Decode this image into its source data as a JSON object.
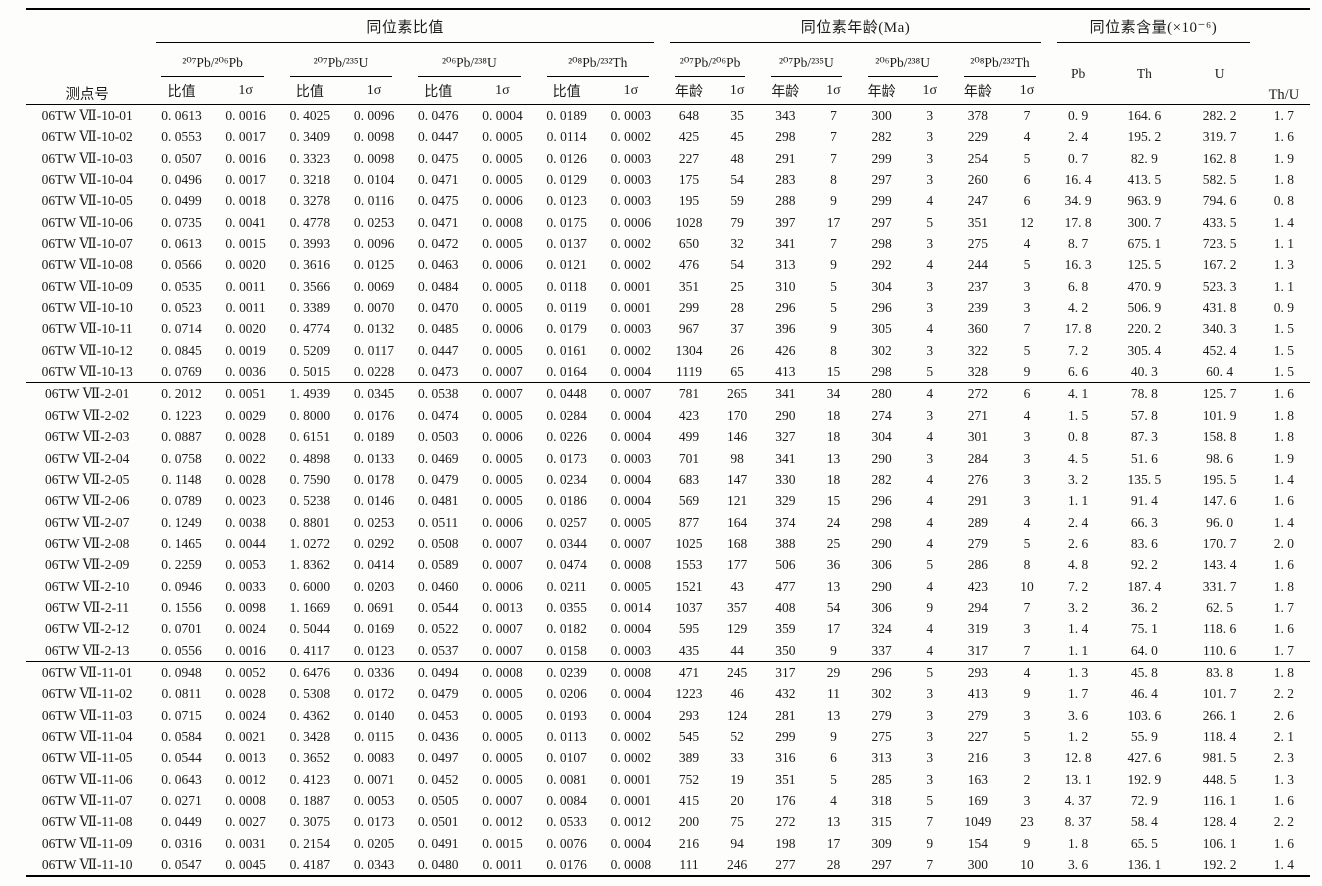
{
  "colors": {
    "ink": "#1c1c1c",
    "rule": "#000000",
    "background": "#fdfdfc"
  },
  "header": {
    "sample": "测点号",
    "group_ratios": "同位素比值",
    "group_ages": "同位素年龄(Ma)",
    "group_content": "同位素含量(×10⁻⁶)",
    "thu": "Th/U",
    "isotopes": [
      "²⁰⁷Pb/²⁰⁶Pb",
      "²⁰⁷Pb/²³⁵U",
      "²⁰⁶Pb/²³⁸U",
      "²⁰⁸Pb/²³²Th"
    ],
    "sub_ratio": "比值",
    "sub_age": "年龄",
    "sigma": "1σ",
    "pb": "Pb",
    "th": "Th",
    "u": "U"
  },
  "table": {
    "groups": [
      {
        "name": "06TW Ⅶ-10",
        "rows": [
          [
            "06TW Ⅶ-10-01",
            "0. 0613",
            "0. 0016",
            "0. 4025",
            "0. 0096",
            "0. 0476",
            "0. 0004",
            "0. 0189",
            "0. 0003",
            "648",
            "35",
            "343",
            "7",
            "300",
            "3",
            "378",
            "7",
            "0. 9",
            "164. 6",
            "282. 2",
            "1. 7"
          ],
          [
            "06TW Ⅶ-10-02",
            "0. 0553",
            "0. 0017",
            "0. 3409",
            "0. 0098",
            "0. 0447",
            "0. 0005",
            "0. 0114",
            "0. 0002",
            "425",
            "45",
            "298",
            "7",
            "282",
            "3",
            "229",
            "4",
            "2. 4",
            "195. 2",
            "319. 7",
            "1. 6"
          ],
          [
            "06TW Ⅶ-10-03",
            "0. 0507",
            "0. 0016",
            "0. 3323",
            "0. 0098",
            "0. 0475",
            "0. 0005",
            "0. 0126",
            "0. 0003",
            "227",
            "48",
            "291",
            "7",
            "299",
            "3",
            "254",
            "5",
            "0. 7",
            "82. 9",
            "162. 8",
            "1. 9"
          ],
          [
            "06TW Ⅶ-10-04",
            "0. 0496",
            "0. 0017",
            "0. 3218",
            "0. 0104",
            "0. 0471",
            "0. 0005",
            "0. 0129",
            "0. 0003",
            "175",
            "54",
            "283",
            "8",
            "297",
            "3",
            "260",
            "6",
            "16. 4",
            "413. 5",
            "582. 5",
            "1. 8"
          ],
          [
            "06TW Ⅶ-10-05",
            "0. 0499",
            "0. 0018",
            "0. 3278",
            "0. 0116",
            "0. 0475",
            "0. 0006",
            "0. 0123",
            "0. 0003",
            "195",
            "59",
            "288",
            "9",
            "299",
            "4",
            "247",
            "6",
            "34. 9",
            "963. 9",
            "794. 6",
            "0. 8"
          ],
          [
            "06TW Ⅶ-10-06",
            "0. 0735",
            "0. 0041",
            "0. 4778",
            "0. 0253",
            "0. 0471",
            "0. 0008",
            "0. 0175",
            "0. 0006",
            "1028",
            "79",
            "397",
            "17",
            "297",
            "5",
            "351",
            "12",
            "17. 8",
            "300. 7",
            "433. 5",
            "1. 4"
          ],
          [
            "06TW Ⅶ-10-07",
            "0. 0613",
            "0. 0015",
            "0. 3993",
            "0. 0096",
            "0. 0472",
            "0. 0005",
            "0. 0137",
            "0. 0002",
            "650",
            "32",
            "341",
            "7",
            "298",
            "3",
            "275",
            "4",
            "8. 7",
            "675. 1",
            "723. 5",
            "1. 1"
          ],
          [
            "06TW Ⅶ-10-08",
            "0. 0566",
            "0. 0020",
            "0. 3616",
            "0. 0125",
            "0. 0463",
            "0. 0006",
            "0. 0121",
            "0. 0002",
            "476",
            "54",
            "313",
            "9",
            "292",
            "4",
            "244",
            "5",
            "16. 3",
            "125. 5",
            "167. 2",
            "1. 3"
          ],
          [
            "06TW Ⅶ-10-09",
            "0. 0535",
            "0. 0011",
            "0. 3566",
            "0. 0069",
            "0. 0484",
            "0. 0005",
            "0. 0118",
            "0. 0001",
            "351",
            "25",
            "310",
            "5",
            "304",
            "3",
            "237",
            "3",
            "6. 8",
            "470. 9",
            "523. 3",
            "1. 1"
          ],
          [
            "06TW Ⅶ-10-10",
            "0. 0523",
            "0. 0011",
            "0. 3389",
            "0. 0070",
            "0. 0470",
            "0. 0005",
            "0. 0119",
            "0. 0001",
            "299",
            "28",
            "296",
            "5",
            "296",
            "3",
            "239",
            "3",
            "4. 2",
            "506. 9",
            "431. 8",
            "0. 9"
          ],
          [
            "06TW Ⅶ-10-11",
            "0. 0714",
            "0. 0020",
            "0. 4774",
            "0. 0132",
            "0. 0485",
            "0. 0006",
            "0. 0179",
            "0. 0003",
            "967",
            "37",
            "396",
            "9",
            "305",
            "4",
            "360",
            "7",
            "17. 8",
            "220. 2",
            "340. 3",
            "1. 5"
          ],
          [
            "06TW Ⅶ-10-12",
            "0. 0845",
            "0. 0019",
            "0. 5209",
            "0. 0117",
            "0. 0447",
            "0. 0005",
            "0. 0161",
            "0. 0002",
            "1304",
            "26",
            "426",
            "8",
            "302",
            "3",
            "322",
            "5",
            "7. 2",
            "305. 4",
            "452. 4",
            "1. 5"
          ],
          [
            "06TW Ⅶ-10-13",
            "0. 0769",
            "0. 0036",
            "0. 5015",
            "0. 0228",
            "0. 0473",
            "0. 0007",
            "0. 0164",
            "0. 0004",
            "1119",
            "65",
            "413",
            "15",
            "298",
            "5",
            "328",
            "9",
            "6. 6",
            "40. 3",
            "60. 4",
            "1. 5"
          ]
        ]
      },
      {
        "name": "06TW Ⅶ-2",
        "rows": [
          [
            "06TW Ⅶ-2-01",
            "0. 2012",
            "0. 0051",
            "1. 4939",
            "0. 0345",
            "0. 0538",
            "0. 0007",
            "0. 0448",
            "0. 0007",
            "781",
            "265",
            "341",
            "34",
            "280",
            "4",
            "272",
            "6",
            "4. 1",
            "78. 8",
            "125. 7",
            "1. 6"
          ],
          [
            "06TW Ⅶ-2-02",
            "0. 1223",
            "0. 0029",
            "0. 8000",
            "0. 0176",
            "0. 0474",
            "0. 0005",
            "0. 0284",
            "0. 0004",
            "423",
            "170",
            "290",
            "18",
            "274",
            "3",
            "271",
            "4",
            "1. 5",
            "57. 8",
            "101. 9",
            "1. 8"
          ],
          [
            "06TW Ⅶ-2-03",
            "0. 0887",
            "0. 0028",
            "0. 6151",
            "0. 0189",
            "0. 0503",
            "0. 0006",
            "0. 0226",
            "0. 0004",
            "499",
            "146",
            "327",
            "18",
            "304",
            "4",
            "301",
            "3",
            "0. 8",
            "87. 3",
            "158. 8",
            "1. 8"
          ],
          [
            "06TW Ⅶ-2-04",
            "0. 0758",
            "0. 0022",
            "0. 4898",
            "0. 0133",
            "0. 0469",
            "0. 0005",
            "0. 0173",
            "0. 0003",
            "701",
            "98",
            "341",
            "13",
            "290",
            "3",
            "284",
            "3",
            "4. 5",
            "51. 6",
            "98. 6",
            "1. 9"
          ],
          [
            "06TW Ⅶ-2-05",
            "0. 1148",
            "0. 0028",
            "0. 7590",
            "0. 0178",
            "0. 0479",
            "0. 0005",
            "0. 0234",
            "0. 0004",
            "683",
            "147",
            "330",
            "18",
            "282",
            "4",
            "276",
            "3",
            "3. 2",
            "135. 5",
            "195. 5",
            "1. 4"
          ],
          [
            "06TW Ⅶ-2-06",
            "0. 0789",
            "0. 0023",
            "0. 5238",
            "0. 0146",
            "0. 0481",
            "0. 0005",
            "0. 0186",
            "0. 0004",
            "569",
            "121",
            "329",
            "15",
            "296",
            "4",
            "291",
            "3",
            "1. 1",
            "91. 4",
            "147. 6",
            "1. 6"
          ],
          [
            "06TW Ⅶ-2-07",
            "0. 1249",
            "0. 0038",
            "0. 8801",
            "0. 0253",
            "0. 0511",
            "0. 0006",
            "0. 0257",
            "0. 0005",
            "877",
            "164",
            "374",
            "24",
            "298",
            "4",
            "289",
            "4",
            "2. 4",
            "66. 3",
            "96. 0",
            "1. 4"
          ],
          [
            "06TW Ⅶ-2-08",
            "0. 1465",
            "0. 0044",
            "1. 0272",
            "0. 0292",
            "0. 0508",
            "0. 0007",
            "0. 0344",
            "0. 0007",
            "1025",
            "168",
            "388",
            "25",
            "290",
            "4",
            "279",
            "5",
            "2. 6",
            "83. 6",
            "170. 7",
            "2. 0"
          ],
          [
            "06TW Ⅶ-2-09",
            "0. 2259",
            "0. 0053",
            "1. 8362",
            "0. 0414",
            "0. 0589",
            "0. 0007",
            "0. 0474",
            "0. 0008",
            "1553",
            "177",
            "506",
            "36",
            "306",
            "5",
            "286",
            "8",
            "4. 8",
            "92. 2",
            "143. 4",
            "1. 6"
          ],
          [
            "06TW Ⅶ-2-10",
            "0. 0946",
            "0. 0033",
            "0. 6000",
            "0. 0203",
            "0. 0460",
            "0. 0006",
            "0. 0211",
            "0. 0005",
            "1521",
            "43",
            "477",
            "13",
            "290",
            "4",
            "423",
            "10",
            "7. 2",
            "187. 4",
            "331. 7",
            "1. 8"
          ],
          [
            "06TW Ⅶ-2-11",
            "0. 1556",
            "0. 0098",
            "1. 1669",
            "0. 0691",
            "0. 0544",
            "0. 0013",
            "0. 0355",
            "0. 0014",
            "1037",
            "357",
            "408",
            "54",
            "306",
            "9",
            "294",
            "7",
            "3. 2",
            "36. 2",
            "62. 5",
            "1. 7"
          ],
          [
            "06TW Ⅶ-2-12",
            "0. 0701",
            "0. 0024",
            "0. 5044",
            "0. 0169",
            "0. 0522",
            "0. 0007",
            "0. 0182",
            "0. 0004",
            "595",
            "129",
            "359",
            "17",
            "324",
            "4",
            "319",
            "3",
            "1. 4",
            "75. 1",
            "118. 6",
            "1. 6"
          ],
          [
            "06TW Ⅶ-2-13",
            "0. 0556",
            "0. 0016",
            "0. 4117",
            "0. 0123",
            "0. 0537",
            "0. 0007",
            "0. 0158",
            "0. 0003",
            "435",
            "44",
            "350",
            "9",
            "337",
            "4",
            "317",
            "7",
            "1. 1",
            "64. 0",
            "110. 6",
            "1. 7"
          ]
        ]
      },
      {
        "name": "06TW Ⅶ-11",
        "rows": [
          [
            "06TW Ⅶ-11-01",
            "0. 0948",
            "0. 0052",
            "0. 6476",
            "0. 0336",
            "0. 0494",
            "0. 0008",
            "0. 0239",
            "0. 0008",
            "471",
            "245",
            "317",
            "29",
            "296",
            "5",
            "293",
            "4",
            "1. 3",
            "45. 8",
            "83. 8",
            "1. 8"
          ],
          [
            "06TW Ⅶ-11-02",
            "0. 0811",
            "0. 0028",
            "0. 5308",
            "0. 0172",
            "0. 0479",
            "0. 0005",
            "0. 0206",
            "0. 0004",
            "1223",
            "46",
            "432",
            "11",
            "302",
            "3",
            "413",
            "9",
            "1. 7",
            "46. 4",
            "101. 7",
            "2. 2"
          ],
          [
            "06TW Ⅶ-11-03",
            "0. 0715",
            "0. 0024",
            "0. 4362",
            "0. 0140",
            "0. 0453",
            "0. 0005",
            "0. 0193",
            "0. 0004",
            "293",
            "124",
            "281",
            "13",
            "279",
            "3",
            "279",
            "3",
            "3. 6",
            "103. 6",
            "266. 1",
            "2. 6"
          ],
          [
            "06TW Ⅶ-11-04",
            "0. 0584",
            "0. 0021",
            "0. 3428",
            "0. 0115",
            "0. 0436",
            "0. 0005",
            "0. 0113",
            "0. 0002",
            "545",
            "52",
            "299",
            "9",
            "275",
            "3",
            "227",
            "5",
            "1. 2",
            "55. 9",
            "118. 4",
            "2. 1"
          ],
          [
            "06TW Ⅶ-11-05",
            "0. 0544",
            "0. 0013",
            "0. 3652",
            "0. 0083",
            "0. 0497",
            "0. 0005",
            "0. 0107",
            "0. 0002",
            "389",
            "33",
            "316",
            "6",
            "313",
            "3",
            "216",
            "3",
            "12. 8",
            "427. 6",
            "981. 5",
            "2. 3"
          ],
          [
            "06TW Ⅶ-11-06",
            "0. 0643",
            "0. 0012",
            "0. 4123",
            "0. 0071",
            "0. 0452",
            "0. 0005",
            "0. 0081",
            "0. 0001",
            "752",
            "19",
            "351",
            "5",
            "285",
            "3",
            "163",
            "2",
            "13. 1",
            "192. 9",
            "448. 5",
            "1. 3"
          ],
          [
            "06TW Ⅶ-11-07",
            "0. 0271",
            "0. 0008",
            "0. 1887",
            "0. 0053",
            "0. 0505",
            "0. 0007",
            "0. 0084",
            "0. 0001",
            "415",
            "20",
            "176",
            "4",
            "318",
            "5",
            "169",
            "3",
            "4. 37",
            "72. 9",
            "116. 1",
            "1. 6"
          ],
          [
            "06TW Ⅶ-11-08",
            "0. 0449",
            "0. 0027",
            "0. 3075",
            "0. 0173",
            "0. 0501",
            "0. 0012",
            "0. 0533",
            "0. 0012",
            "200",
            "75",
            "272",
            "13",
            "315",
            "7",
            "1049",
            "23",
            "8. 37",
            "58. 4",
            "128. 4",
            "2. 2"
          ],
          [
            "06TW Ⅶ-11-09",
            "0. 0316",
            "0. 0031",
            "0. 2154",
            "0. 0205",
            "0. 0491",
            "0. 0015",
            "0. 0076",
            "0. 0004",
            "216",
            "94",
            "198",
            "17",
            "309",
            "9",
            "154",
            "9",
            "1. 8",
            "65. 5",
            "106. 1",
            "1. 6"
          ],
          [
            "06TW Ⅶ-11-10",
            "0. 0547",
            "0. 0045",
            "0. 4187",
            "0. 0343",
            "0. 0480",
            "0. 0011",
            "0. 0176",
            "0. 0008",
            "111",
            "246",
            "277",
            "28",
            "297",
            "7",
            "300",
            "10",
            "3. 6",
            "136. 1",
            "192. 2",
            "1. 4"
          ]
        ]
      }
    ]
  }
}
